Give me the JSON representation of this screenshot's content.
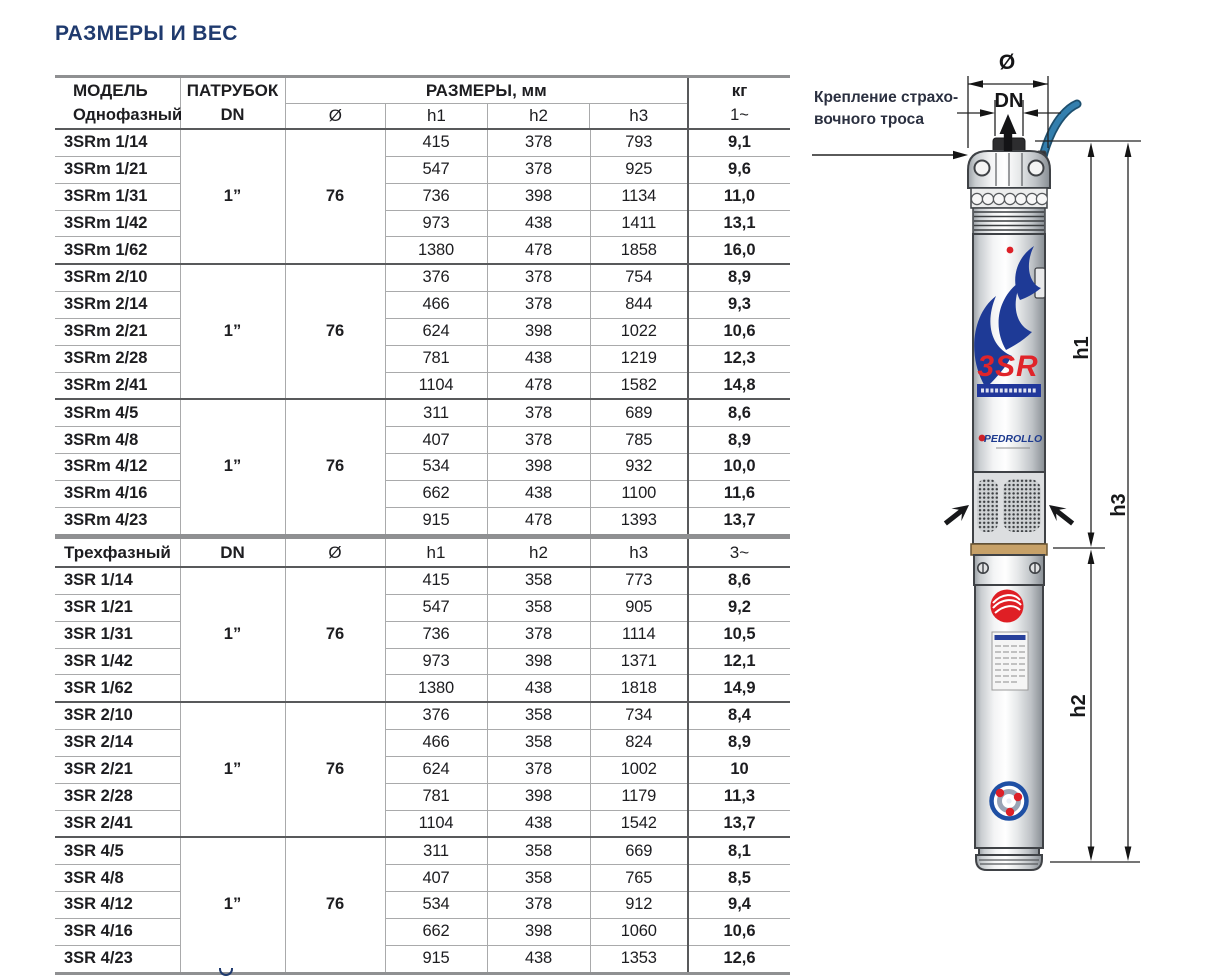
{
  "page": {
    "title": "РАЗМЕРЫ И ВЕС",
    "accent_navy": "#1f3a6e"
  },
  "table_single_phase": {
    "headers": {
      "model": "МОДЕЛЬ",
      "model_sub": "Однофазный",
      "port": "ПАТРУБОК",
      "port_sub": "DN",
      "sizes": "РАЗМЕРЫ, мм",
      "diameter": "Ø",
      "h1": "h1",
      "h2": "h2",
      "h3": "h3",
      "weight": "кг",
      "weight_sub": "1~"
    },
    "groups": [
      {
        "dn": "1”",
        "diameter": "76",
        "rows": [
          {
            "model": "3SRm 1/14",
            "h1": "415",
            "h2": "378",
            "h3": "793",
            "kg": "9,1"
          },
          {
            "model": "3SRm 1/21",
            "h1": "547",
            "h2": "378",
            "h3": "925",
            "kg": "9,6"
          },
          {
            "model": "3SRm 1/31",
            "h1": "736",
            "h2": "398",
            "h3": "1134",
            "kg": "11,0"
          },
          {
            "model": "3SRm 1/42",
            "h1": "973",
            "h2": "438",
            "h3": "1411",
            "kg": "13,1"
          },
          {
            "model": "3SRm 1/62",
            "h1": "1380",
            "h2": "478",
            "h3": "1858",
            "kg": "16,0"
          }
        ]
      },
      {
        "dn": "1”",
        "diameter": "76",
        "rows": [
          {
            "model": "3SRm 2/10",
            "h1": "376",
            "h2": "378",
            "h3": "754",
            "kg": "8,9"
          },
          {
            "model": "3SRm 2/14",
            "h1": "466",
            "h2": "378",
            "h3": "844",
            "kg": "9,3"
          },
          {
            "model": "3SRm 2/21",
            "h1": "624",
            "h2": "398",
            "h3": "1022",
            "kg": "10,6"
          },
          {
            "model": "3SRm 2/28",
            "h1": "781",
            "h2": "438",
            "h3": "1219",
            "kg": "12,3"
          },
          {
            "model": "3SRm 2/41",
            "h1": "1104",
            "h2": "478",
            "h3": "1582",
            "kg": "14,8"
          }
        ]
      },
      {
        "dn": "1”",
        "diameter": "76",
        "rows": [
          {
            "model": "3SRm 4/5",
            "h1": "311",
            "h2": "378",
            "h3": "689",
            "kg": "8,6"
          },
          {
            "model": "3SRm 4/8",
            "h1": "407",
            "h2": "378",
            "h3": "785",
            "kg": "8,9"
          },
          {
            "model": "3SRm 4/12",
            "h1": "534",
            "h2": "398",
            "h3": "932",
            "kg": "10,0"
          },
          {
            "model": "3SRm 4/16",
            "h1": "662",
            "h2": "438",
            "h3": "1100",
            "kg": "11,6"
          },
          {
            "model": "3SRm 4/23",
            "h1": "915",
            "h2": "478",
            "h3": "1393",
            "kg": "13,7"
          }
        ]
      }
    ]
  },
  "table_three_phase": {
    "headers": {
      "model": "Трехфазный",
      "port": "DN",
      "diameter": "Ø",
      "h1": "h1",
      "h2": "h2",
      "h3": "h3",
      "weight": "3~"
    },
    "groups": [
      {
        "dn": "1”",
        "diameter": "76",
        "rows": [
          {
            "model": "3SR 1/14",
            "h1": "415",
            "h2": "358",
            "h3": "773",
            "kg": "8,6"
          },
          {
            "model": "3SR 1/21",
            "h1": "547",
            "h2": "358",
            "h3": "905",
            "kg": "9,2"
          },
          {
            "model": "3SR 1/31",
            "h1": "736",
            "h2": "378",
            "h3": "1114",
            "kg": "10,5"
          },
          {
            "model": "3SR 1/42",
            "h1": "973",
            "h2": "398",
            "h3": "1371",
            "kg": "12,1"
          },
          {
            "model": "3SR 1/62",
            "h1": "1380",
            "h2": "438",
            "h3": "1818",
            "kg": "14,9"
          }
        ]
      },
      {
        "dn": "1”",
        "diameter": "76",
        "rows": [
          {
            "model": "3SR 2/10",
            "h1": "376",
            "h2": "358",
            "h3": "734",
            "kg": "8,4"
          },
          {
            "model": "3SR 2/14",
            "h1": "466",
            "h2": "358",
            "h3": "824",
            "kg": "8,9"
          },
          {
            "model": "3SR 2/21",
            "h1": "624",
            "h2": "378",
            "h3": "1002",
            "kg": "10"
          },
          {
            "model": "3SR 2/28",
            "h1": "781",
            "h2": "398",
            "h3": "1179",
            "kg": "11,3"
          },
          {
            "model": "3SR 2/41",
            "h1": "1104",
            "h2": "438",
            "h3": "1542",
            "kg": "13,7"
          }
        ]
      },
      {
        "dn": "1”",
        "diameter": "76",
        "rows": [
          {
            "model": "3SR 4/5",
            "h1": "311",
            "h2": "358",
            "h3": "669",
            "kg": "8,1"
          },
          {
            "model": "3SR 4/8",
            "h1": "407",
            "h2": "358",
            "h3": "765",
            "kg": "8,5"
          },
          {
            "model": "3SR 4/12",
            "h1": "534",
            "h2": "378",
            "h3": "912",
            "kg": "9,4"
          },
          {
            "model": "3SR 4/16",
            "h1": "662",
            "h2": "398",
            "h3": "1060",
            "kg": "10,6"
          },
          {
            "model": "3SR 4/23",
            "h1": "915",
            "h2": "438",
            "h3": "1353",
            "kg": "12,6"
          }
        ]
      }
    ]
  },
  "diagram": {
    "rope_label_line1": "Крепление страхо-",
    "rope_label_line2": "вочного троса",
    "dim_diameter": "Ø",
    "dim_dn": "DN",
    "dim_h1": "h1",
    "dim_h2": "h2",
    "dim_h3": "h3",
    "pump_brand": "3SR",
    "pump_maker": "PEDROLLO"
  }
}
